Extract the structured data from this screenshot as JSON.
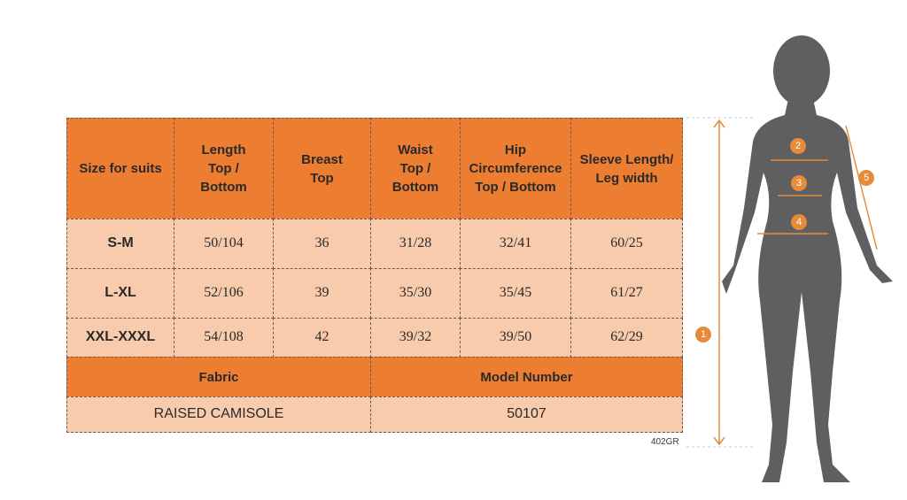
{
  "size_table": {
    "header": [
      "Size for suits",
      "Length\nTop /\nBottom",
      "Breast\nTop",
      "Waist\nTop /\nBottom",
      "Hip\nCircumference\nTop / Bottom",
      "Sleeve Length/\nLeg width"
    ],
    "rows": [
      [
        "S-M",
        "50/104",
        "36",
        "31/28",
        "32/41",
        "60/25"
      ],
      [
        "L-XL",
        "52/106",
        "39",
        "35/30",
        "35/45",
        "61/27"
      ],
      [
        "XXL-XXXL",
        "54/108",
        "42",
        "39/32",
        "39/50",
        "62/29"
      ]
    ]
  },
  "details": {
    "header": [
      "Fabric",
      "Model Number"
    ],
    "values": [
      "RAISED CAMISOLE",
      "50107"
    ]
  },
  "code": "402GR",
  "figure": {
    "markers": [
      "1",
      "2",
      "3",
      "4",
      "5"
    ]
  }
}
